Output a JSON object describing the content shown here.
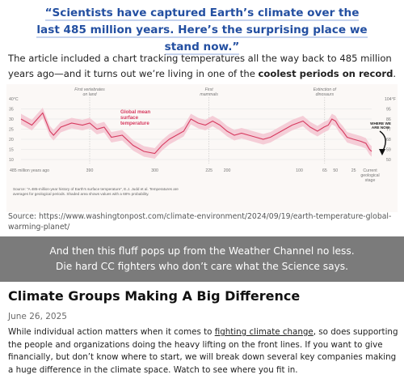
{
  "quote": {
    "line1": "“Scientists have captured Earth’s climate over the",
    "line2": "last 485 million years. Here’s the surprising place we stand now.”"
  },
  "intro": {
    "before": "The article included a chart tracking temperatures all the way back to 485 million years ago—and it turns out we’re living in one of the ",
    "bold": "coolest periods on record",
    "after": "."
  },
  "chart_data": {
    "type": "area",
    "y_unit_left": "40°C",
    "y_unit_right": "104°F",
    "y_ticks_left": [
      "35",
      "30",
      "25",
      "20",
      "15",
      "10"
    ],
    "y_ticks_right": [
      "95",
      "86",
      "77",
      "68",
      "59",
      "50"
    ],
    "ylim": [
      8,
      40
    ],
    "xlim": [
      485,
      0
    ],
    "x_ticks": [
      "485 million years ago",
      "390",
      "300",
      "225",
      "200",
      "100",
      "65",
      "50",
      "25",
      "Current geological stage"
    ],
    "series": [
      {
        "name": "Global mean surface temperature",
        "x": [
          485,
          470,
          455,
          445,
          440,
          430,
          415,
          400,
          390,
          380,
          370,
          360,
          345,
          330,
          315,
          300,
          290,
          280,
          270,
          260,
          250,
          240,
          230,
          220,
          210,
          200,
          190,
          180,
          170,
          160,
          150,
          140,
          125,
          110,
          95,
          85,
          75,
          66,
          60,
          55,
          50,
          45,
          40,
          34,
          25,
          15,
          8,
          3,
          0
        ],
        "y": [
          30,
          27,
          33,
          24,
          22,
          26,
          28,
          27,
          28,
          25,
          26,
          21,
          22,
          17,
          14,
          13,
          17,
          20,
          22,
          24,
          30,
          28,
          27,
          29,
          27,
          24,
          22,
          23,
          22,
          21,
          20,
          21,
          24,
          27,
          29,
          26,
          24,
          26,
          27,
          30,
          29,
          26,
          24,
          21,
          20,
          19,
          18,
          15,
          14
        ]
      }
    ],
    "annotations": [
      {
        "label": "First vertebrates on land",
        "x": 390
      },
      {
        "label": "First mammals",
        "x": 225
      },
      {
        "label": "Extinction of dinosaurs",
        "x": 65
      },
      {
        "label": "WHERE WE ARE NOW",
        "x": 0
      }
    ],
    "series_label": "Global mean surface temperature",
    "footnote": "Source: “A 485-million-year history of Earth’s surface temperature”, E.J. Judd et al. Temperatures are averages for geological periods. Shaded area shows values with a 68% probability."
  },
  "colors": {
    "line": "#d63a5f",
    "band": "#f3c6d1",
    "quote": "#234fa1",
    "banner": "#7b7b7b"
  },
  "source": "Source: https://www.washingtonpost.com/climate-environment/2024/09/19/earth-temperature-global-warming-planet/",
  "banner": {
    "line1": "And then this fluff pops up from the Weather Channel no less.",
    "line2": "Die hard CC fighters who don’t care what the Science says."
  },
  "article": {
    "title": "Climate Groups Making A Big Difference",
    "date": "June 26, 2025",
    "body_before": "While individual action matters when it comes to ",
    "body_link": "fighting climate change",
    "body_after": ", so does supporting the people and organizations doing the heavy lifting on the front lines. If you want to give financially, but don’t know where to start, we will break down several key companies making a huge difference in the climate space. Watch to see where you fit in."
  }
}
